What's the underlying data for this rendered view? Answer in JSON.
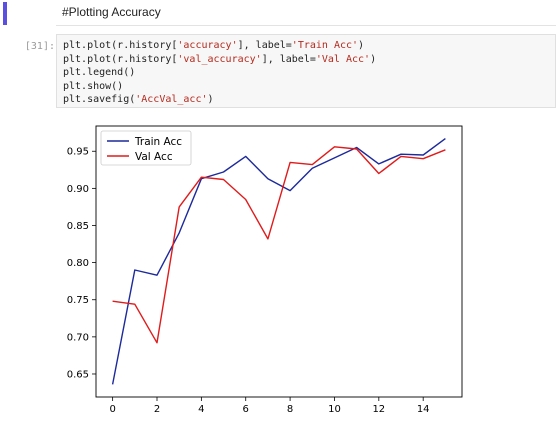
{
  "markdown_cell": {
    "text": "#Plotting Accuracy"
  },
  "code_cell": {
    "prompt": "[31]:",
    "lines": [
      {
        "pre": "plt.plot(r.history[",
        "s1": "'accuracy'",
        "mid": "], label=",
        "s2": "'Train Acc'",
        "post": ")"
      },
      {
        "pre": "plt.plot(r.history[",
        "s1": "'val_accuracy'",
        "mid": "], label=",
        "s2": "'Val Acc'",
        "post": ")"
      },
      {
        "pre": "plt.legend()",
        "s1": "",
        "mid": "",
        "s2": "",
        "post": ""
      },
      {
        "pre": "plt.show()",
        "s1": "",
        "mid": "",
        "s2": "",
        "post": ""
      },
      {
        "pre": "plt.savefig(",
        "s1": "'AccVal_acc'",
        "mid": ")",
        "s2": "",
        "post": ""
      }
    ]
  },
  "chart_data": {
    "type": "line",
    "x": [
      0,
      1,
      2,
      3,
      4,
      5,
      6,
      7,
      8,
      9,
      10,
      11,
      12,
      13,
      14,
      15
    ],
    "series": [
      {
        "name": "Train Acc",
        "color": "#1c2a9c",
        "values": [
          0.636,
          0.79,
          0.783,
          0.84,
          0.913,
          0.922,
          0.943,
          0.913,
          0.897,
          0.927,
          0.941,
          0.955,
          0.933,
          0.946,
          0.945,
          0.967
        ]
      },
      {
        "name": "Val Acc",
        "color": "#e01b1b",
        "values": [
          0.748,
          0.744,
          0.692,
          0.875,
          0.915,
          0.912,
          0.885,
          0.832,
          0.935,
          0.932,
          0.956,
          0.953,
          0.92,
          0.943,
          0.94,
          0.952
        ]
      }
    ],
    "xticks": [
      0,
      2,
      4,
      6,
      8,
      10,
      12,
      14
    ],
    "yticks": [
      0.65,
      0.7,
      0.75,
      0.8,
      0.85,
      0.9,
      0.95
    ],
    "xlim": [
      -0.75,
      15.75
    ],
    "ylim": [
      0.619,
      0.984
    ],
    "legend_loc": "upper-left",
    "grid": false,
    "title": "",
    "xlabel": "",
    "ylabel": ""
  }
}
